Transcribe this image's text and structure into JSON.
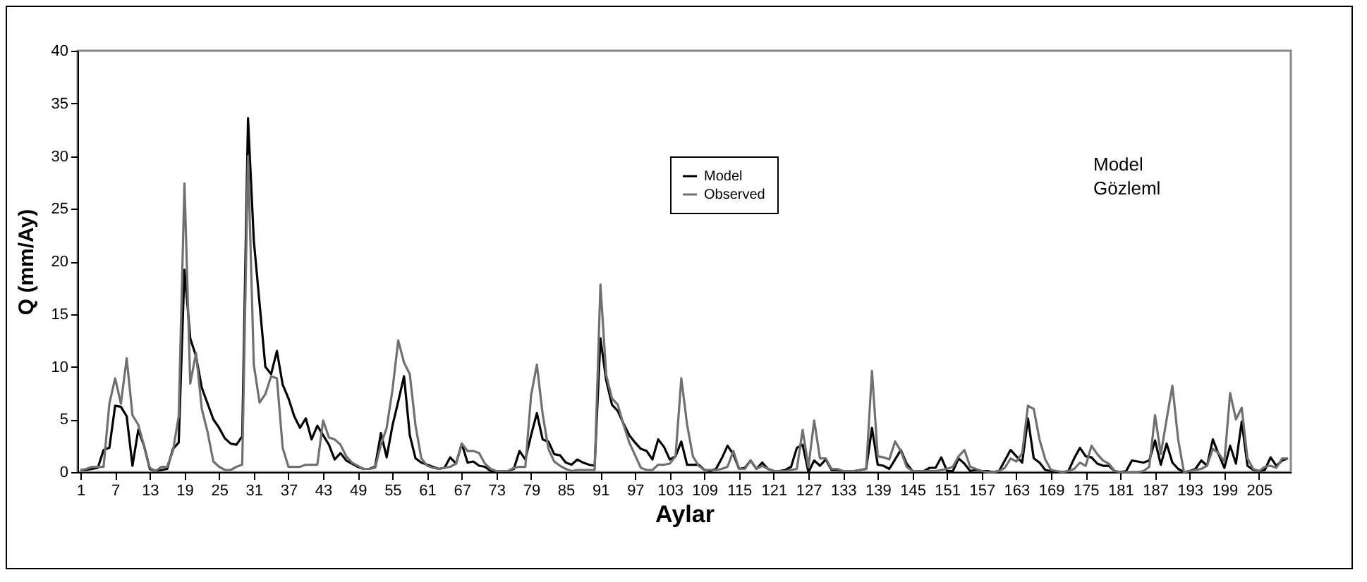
{
  "chart_data": {
    "type": "line",
    "xlabel": "Aylar",
    "ylabel": "Q (mm/Ay)",
    "x": [
      1,
      2,
      3,
      4,
      5,
      6,
      7,
      8,
      9,
      10,
      11,
      12,
      13,
      14,
      15,
      16,
      17,
      18,
      19,
      20,
      21,
      22,
      23,
      24,
      25,
      26,
      27,
      28,
      29,
      30,
      31,
      32,
      33,
      34,
      35,
      36,
      37,
      38,
      39,
      40,
      41,
      42,
      43,
      44,
      45,
      46,
      47,
      48,
      49,
      50,
      51,
      52,
      53,
      54,
      55,
      56,
      57,
      58,
      59,
      60,
      61,
      62,
      63,
      64,
      65,
      66,
      67,
      68,
      69,
      70,
      71,
      72,
      73,
      74,
      75,
      76,
      77,
      78,
      79,
      80,
      81,
      82,
      83,
      84,
      85,
      86,
      87,
      88,
      89,
      90,
      91,
      92,
      93,
      94,
      95,
      96,
      97,
      98,
      99,
      100,
      101,
      102,
      103,
      104,
      105,
      106,
      107,
      108,
      109,
      110,
      111,
      112,
      113,
      114,
      115,
      116,
      117,
      118,
      119,
      120,
      121,
      122,
      123,
      124,
      125,
      126,
      127,
      128,
      129,
      130,
      131,
      132,
      133,
      134,
      135,
      136,
      137,
      138,
      139,
      140,
      141,
      142,
      143,
      144,
      145,
      146,
      147,
      148,
      149,
      150,
      151,
      152,
      153,
      154,
      155,
      156,
      157,
      158,
      159,
      160,
      161,
      162,
      163,
      164,
      165,
      166,
      167,
      168,
      169,
      170,
      171,
      172,
      173,
      174,
      175,
      176,
      177,
      178,
      179,
      180,
      181,
      182,
      183,
      184,
      185,
      186,
      187,
      188,
      189,
      190,
      191,
      192,
      193,
      194,
      195,
      196,
      197,
      198,
      199,
      200,
      201,
      202,
      203,
      204,
      205,
      206,
      207,
      208,
      209,
      210
    ],
    "series": [
      {
        "name": "Model",
        "color": "#000000",
        "values": [
          0.2,
          0.2,
          0.3,
          0.4,
          2.1,
          2.3,
          6.3,
          6.2,
          5.3,
          0.6,
          4.0,
          2.5,
          0.3,
          0.1,
          0.2,
          0.3,
          2.2,
          2.8,
          19.2,
          12.7,
          11.0,
          8.0,
          6.5,
          5.0,
          4.2,
          3.2,
          2.7,
          2.6,
          3.4,
          33.6,
          22,
          16,
          10,
          9.3,
          11.5,
          8.3,
          7,
          5.3,
          4.2,
          5.1,
          3.1,
          4.4,
          3.5,
          2.6,
          1.2,
          1.8,
          1.1,
          0.8,
          0.5,
          0.3,
          0.3,
          0.5,
          3.7,
          1.4,
          4.4,
          6.7,
          9.1,
          3.5,
          1.3,
          0.9,
          0.7,
          0.5,
          0.3,
          0.4,
          1.4,
          0.8,
          2.7,
          0.9,
          1.0,
          0.6,
          0.5,
          0.1,
          0.1,
          0.1,
          0.1,
          0.3,
          2.0,
          1.2,
          3.5,
          5.6,
          3.1,
          2.9,
          1.7,
          1.6,
          0.9,
          0.7,
          1.2,
          0.9,
          0.7,
          0.6,
          12.7,
          8.7,
          6.4,
          5.8,
          4.6,
          3.5,
          2.8,
          2.2,
          2.0,
          1.2,
          3.1,
          2.4,
          1.2,
          1.5,
          2.9,
          0.7,
          0.7,
          0.7,
          0.2,
          0.1,
          0.3,
          1.3,
          2.5,
          1.7,
          0.3,
          0.4,
          1.1,
          0.3,
          0.9,
          0.3,
          0.1,
          0.1,
          0.2,
          0.5,
          2.3,
          2.6,
          0,
          1.1,
          0.6,
          1.2,
          0.2,
          0.2,
          0.1,
          0.1,
          0.1,
          0.2,
          0.3,
          4.2,
          0.7,
          0.6,
          0.3,
          1.2,
          2.1,
          0.8,
          0.1,
          0.1,
          0.1,
          0.4,
          0.4,
          1.4,
          0.1,
          0.1,
          1.3,
          0.8,
          0.1,
          0.2,
          0.1,
          0.1,
          0.0,
          0.1,
          1.1,
          2.1,
          1.5,
          0.9,
          5.1,
          1.3,
          0.9,
          0.2,
          0.1,
          0.0,
          0.0,
          0.1,
          1.3,
          2.3,
          1.5,
          1.4,
          0.8,
          0.6,
          0.6,
          0.1,
          0.0,
          0.1,
          1.1,
          1.0,
          0.9,
          1.1,
          3.0,
          0.7,
          2.7,
          0.9,
          0.3,
          0.0,
          0.1,
          0.3,
          1.1,
          0.6,
          3.1,
          1.7,
          0.4,
          2.5,
          0.8,
          4.8,
          0.6,
          0.2,
          0.1,
          0.2,
          1.4,
          0.6,
          1.1,
          1.3
        ]
      },
      {
        "name": "Observed",
        "color": "#707070",
        "values": [
          0.2,
          0.3,
          0.5,
          0.5,
          0.5,
          6.5,
          8.9,
          6.5,
          10.8,
          5.4,
          4.5,
          2.5,
          0.4,
          0.1,
          0.5,
          0.5,
          2.0,
          5.3,
          27.4,
          8.4,
          11.3,
          6.0,
          3.8,
          1.0,
          0.5,
          0.2,
          0.2,
          0.5,
          0.7,
          30,
          10.2,
          6.6,
          7.4,
          9.1,
          8.9,
          2.3,
          0.5,
          0.5,
          0.5,
          0.7,
          0.7,
          0.7,
          4.9,
          3.3,
          3.1,
          2.6,
          1.5,
          0.9,
          0.6,
          0.3,
          0.3,
          0.4,
          2.6,
          4.2,
          7.8,
          12.5,
          10.4,
          9.3,
          4.4,
          1.3,
          0.6,
          0.4,
          0.3,
          0.4,
          0.5,
          0.8,
          2.7,
          2.0,
          2.0,
          1.8,
          0.8,
          0.3,
          0.1,
          0.1,
          0.1,
          0.4,
          0.5,
          0.5,
          7.3,
          10.2,
          5.5,
          2.2,
          1.0,
          0.6,
          0.3,
          0.1,
          0.2,
          0.2,
          0.2,
          0.2,
          17.8,
          9.2,
          7.0,
          6.4,
          4.5,
          2.8,
          1.6,
          0.4,
          0.2,
          0.2,
          0.7,
          0.7,
          0.8,
          1.5,
          8.9,
          4.5,
          1.5,
          0.6,
          0.2,
          0.2,
          0.2,
          0.3,
          0.5,
          2.0,
          0.3,
          0.3,
          1.1,
          0.3,
          0.6,
          0.3,
          0.1,
          0.1,
          0.1,
          0.2,
          0.3,
          4.0,
          0.5,
          4.9,
          1.3,
          1.3,
          0.3,
          0.3,
          0.1,
          0.1,
          0.1,
          0.2,
          0.3,
          9.6,
          1.5,
          1.4,
          1.2,
          2.9,
          2.0,
          0.5,
          0.1,
          0.1,
          0.1,
          0.1,
          0.1,
          0.2,
          0.3,
          0.5,
          1.5,
          2.1,
          0.5,
          0.3,
          0.1,
          0.0,
          0.0,
          0.1,
          0.4,
          1.3,
          1.0,
          1.8,
          6.3,
          6.0,
          3.1,
          1.2,
          0.2,
          0.1,
          0.0,
          0.1,
          0.3,
          0.9,
          0.6,
          2.5,
          1.7,
          1.1,
          0.8,
          0.1,
          0.0,
          0.0,
          0.0,
          0.0,
          0.1,
          0.5,
          5.4,
          1.7,
          5.0,
          8.2,
          3.1,
          0.0,
          0.1,
          0.2,
          0.3,
          0.6,
          2.2,
          1.8,
          1.0,
          7.5,
          5.0,
          6.1,
          1.3,
          0.3,
          0.1,
          0.5,
          0.6,
          0.4,
          1.3,
          1.3
        ]
      }
    ],
    "xlim": [
      0.5,
      210.5
    ],
    "xticks": [
      1,
      7,
      13,
      19,
      25,
      31,
      37,
      43,
      49,
      55,
      61,
      67,
      73,
      79,
      85,
      91,
      97,
      103,
      109,
      115,
      121,
      127,
      133,
      139,
      145,
      151,
      157,
      163,
      169,
      175,
      181,
      187,
      193,
      199,
      205
    ],
    "ylim": [
      0,
      40
    ],
    "yticks": [
      0,
      5,
      10,
      15,
      20,
      25,
      30,
      35,
      40
    ],
    "grid": false,
    "legend": "top right",
    "marker": "none",
    "line_style": "solid",
    "annotations": [
      "Model",
      "Gözleml"
    ]
  }
}
